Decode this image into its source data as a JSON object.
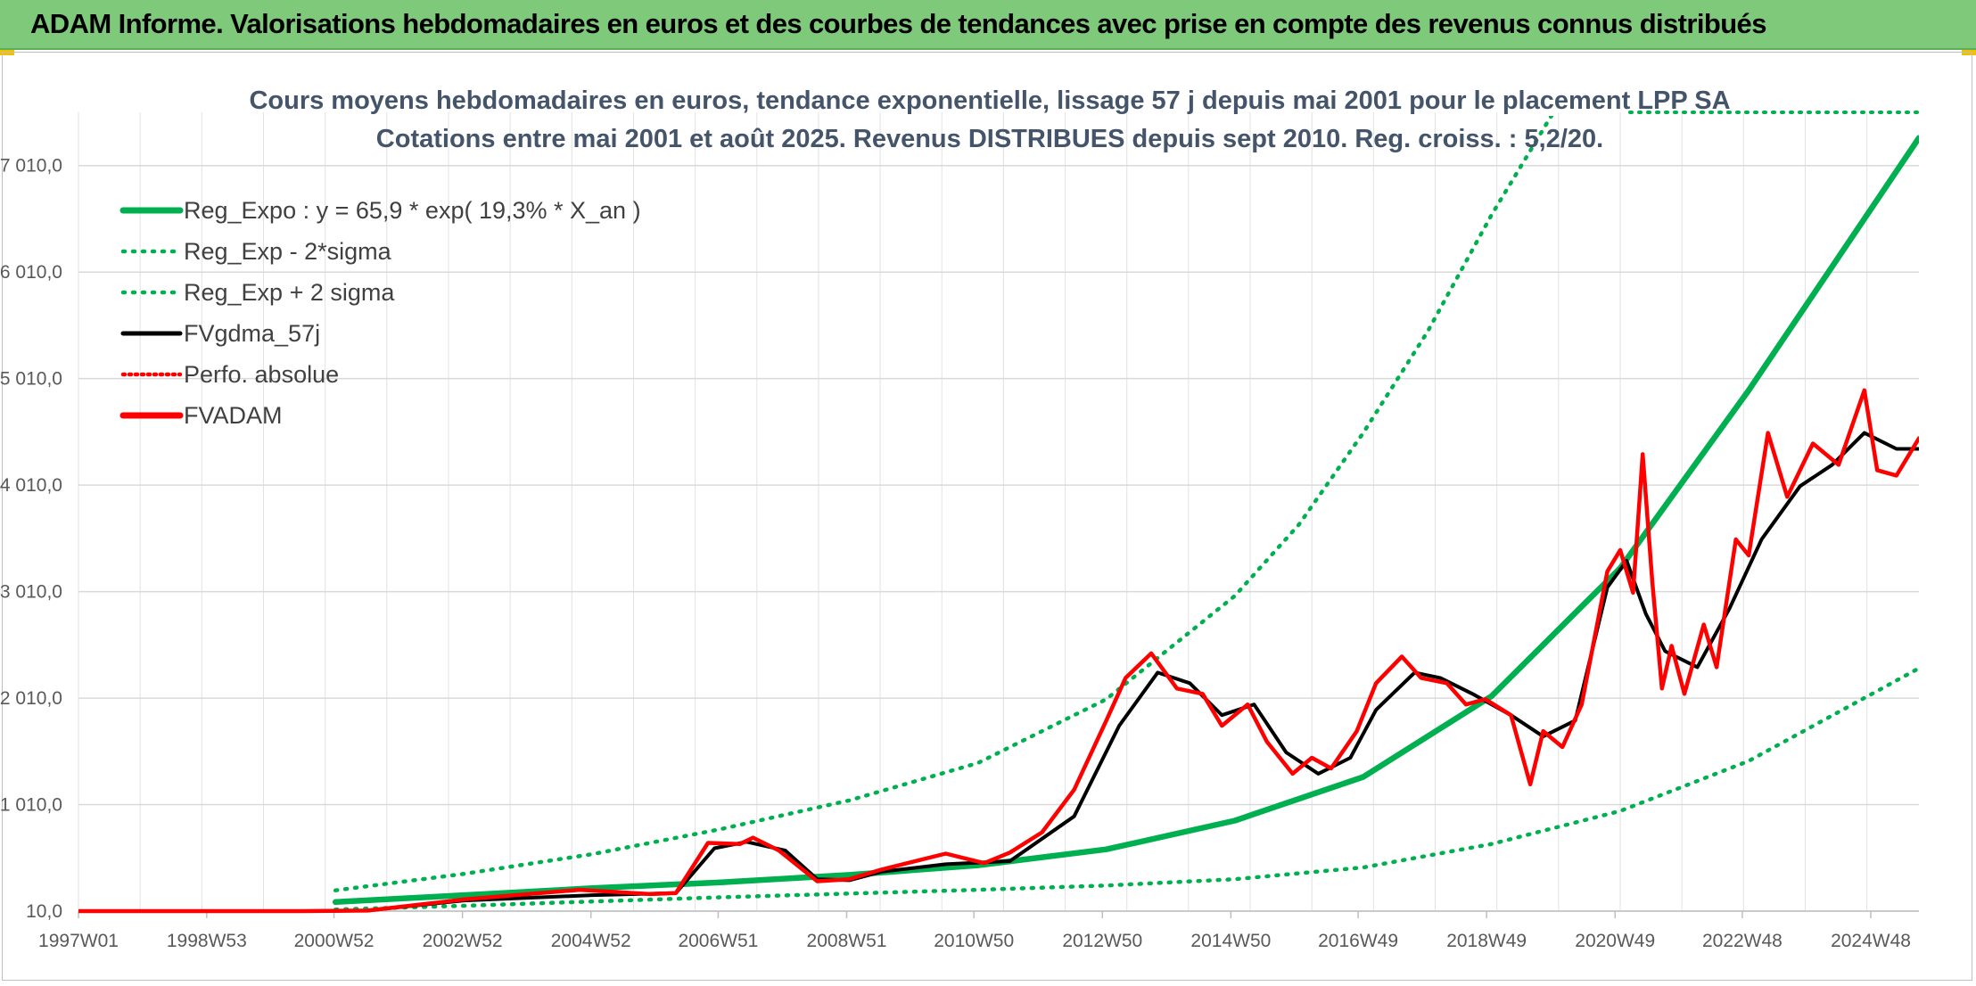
{
  "banner": {
    "title": "ADAM Informe. Valorisations hebdomadaires en euros et des courbes de tendances avec prise en compte des revenus connus distribués"
  },
  "colors": {
    "banner_bg": "#7ec97a",
    "reg_green": "#00b050",
    "fv_red": "#ff0000",
    "gdma_black": "#000000",
    "title_text": "#44546a"
  },
  "chart_data": {
    "type": "line",
    "title_line1": "Cours moyens hebdomadaires en euros, tendance exponentielle, lissage 57 j depuis mai 2001 pour le placement LPP SA",
    "title_line2": "Cotations entre mai 2001 et août 2025. Revenus DISTRIBUES depuis sept 2010. Reg. croiss. : 5,2/20.",
    "x_tick_labels": [
      "1997W01",
      "1998W53",
      "2000W52",
      "2002W52",
      "2004W52",
      "2006W51",
      "2008W51",
      "2010W50",
      "2012W50",
      "2014W50",
      "2016W49",
      "2018W49",
      "2020W49",
      "2022W48",
      "2024W48"
    ],
    "x_range": [
      "1997W01",
      "2025W35"
    ],
    "y_tick_labels": [
      "10,0",
      "1 010,0",
      "2 010,0",
      "3 010,0",
      "4 010,0",
      "5 010,0",
      "6 010,0",
      "7 010,0"
    ],
    "y_ticks": [
      10,
      1010,
      2010,
      3010,
      4010,
      5010,
      6010,
      7010
    ],
    "ylim": [
      10,
      7510
    ],
    "grid": true,
    "legend_position": "top-left",
    "legend": [
      {
        "label": "Reg_Expo : y = 65,9 * exp( 19,3% *  X_an )",
        "style": "solid-thick",
        "color": "#00b050"
      },
      {
        "label": "Reg_Exp - 2*sigma",
        "style": "dotted",
        "color": "#00b050"
      },
      {
        "label": "Reg_Exp + 2 sigma",
        "style": "dotted",
        "color": "#00b050"
      },
      {
        "label": "FVgdma_57j",
        "style": "solid",
        "color": "#000000"
      },
      {
        "label": "Perfo. absolue",
        "style": "dotted",
        "color": "#ff0000"
      },
      {
        "label": "FVADAM",
        "style": "solid-thick",
        "color": "#ff0000"
      }
    ],
    "series": [
      {
        "name": "Reg_Expo : y = 65,9 * exp( 19,3% *  X_an )",
        "x": [
          2001.0,
          2003,
          2005,
          2007,
          2009,
          2011,
          2013,
          2015,
          2017,
          2019,
          2021,
          2023,
          2025.65
        ],
        "values": [
          95,
          160,
          225,
          280,
          350,
          440,
          590,
          860,
          1270,
          2030,
          3230,
          4900,
          7270
        ]
      },
      {
        "name": "Reg_Exp - 2*sigma",
        "x": [
          2001.0,
          2003,
          2005,
          2007,
          2009,
          2011,
          2013,
          2015,
          2017,
          2019,
          2021,
          2023,
          2025.65
        ],
        "values": [
          25,
          60,
          100,
          140,
          175,
          210,
          250,
          310,
          420,
          640,
          950,
          1420,
          2290
        ]
      },
      {
        "name": "Reg_Exp + 2 sigma",
        "x": [
          2001.0,
          2003,
          2005,
          2007,
          2009,
          2011,
          2013,
          2015,
          2016,
          2017,
          2018,
          2019,
          2020.0
        ],
        "values": [
          205,
          360,
          545,
          780,
          1050,
          1400,
          2000,
          2970,
          3640,
          4500,
          5450,
          6550,
          7550
        ]
      },
      {
        "name": "FVgdma_57j",
        "x": [
          1997.0,
          2000.5,
          2001.5,
          2003,
          2005,
          2006.3,
          2006.9,
          2007.4,
          2008.0,
          2008.5,
          2009.0,
          2009.5,
          2010.5,
          2011.5,
          2012.5,
          2013.2,
          2013.8,
          2014.3,
          2014.8,
          2015.3,
          2015.8,
          2016.3,
          2016.8,
          2017.2,
          2017.8,
          2018.2,
          2018.7,
          2019.3,
          2019.8,
          2020.3,
          2020.8,
          2021.1,
          2021.4,
          2021.7,
          2022.2,
          2022.7,
          2023.2,
          2023.8,
          2024.3,
          2024.8,
          2025.3,
          2025.65
        ],
        "values": [
          10,
          10,
          15,
          110,
          160,
          180,
          600,
          660,
          580,
          310,
          300,
          380,
          450,
          480,
          900,
          1750,
          2250,
          2150,
          1850,
          1950,
          1500,
          1300,
          1450,
          1900,
          2250,
          2200,
          2050,
          1850,
          1650,
          1800,
          3050,
          3300,
          2800,
          2450,
          2300,
          2850,
          3500,
          4000,
          4200,
          4500,
          4350,
          4350
        ]
      },
      {
        "name": "Perfo. absolue",
        "x": [
          1997.0,
          2001.4
        ],
        "values": [
          10,
          10
        ]
      },
      {
        "name": "FVADAM",
        "x": [
          1997.0,
          2000.5,
          2001.5,
          2003,
          2004.8,
          2005.9,
          2006.3,
          2006.8,
          2007.3,
          2007.5,
          2007.9,
          2008.5,
          2009.0,
          2009.5,
          2010.5,
          2011.1,
          2011.5,
          2012.0,
          2012.5,
          2013.0,
          2013.3,
          2013.7,
          2014.1,
          2014.5,
          2014.8,
          2015.2,
          2015.5,
          2015.9,
          2016.2,
          2016.5,
          2016.9,
          2017.2,
          2017.6,
          2017.9,
          2018.3,
          2018.6,
          2018.9,
          2019.3,
          2019.6,
          2019.8,
          2020.1,
          2020.4,
          2020.8,
          2021.0,
          2021.2,
          2021.35,
          2021.5,
          2021.65,
          2021.8,
          2022.0,
          2022.3,
          2022.5,
          2022.8,
          2023.0,
          2023.3,
          2023.6,
          2024.0,
          2024.4,
          2024.8,
          2025.0,
          2025.3,
          2025.65
        ],
        "values": [
          10,
          10,
          15,
          120,
          210,
          170,
          180,
          650,
          640,
          700,
          580,
          290,
          310,
          400,
          550,
          460,
          560,
          750,
          1150,
          1800,
          2200,
          2430,
          2100,
          2050,
          1750,
          1950,
          1600,
          1300,
          1450,
          1350,
          1700,
          2150,
          2400,
          2200,
          2150,
          1950,
          2000,
          1850,
          1200,
          1700,
          1550,
          1950,
          3200,
          3400,
          3000,
          4300,
          3100,
          2100,
          2500,
          2050,
          2700,
          2300,
          3500,
          3350,
          4500,
          3900,
          4400,
          4200,
          4900,
          4150,
          4100,
          4450
        ]
      }
    ]
  }
}
